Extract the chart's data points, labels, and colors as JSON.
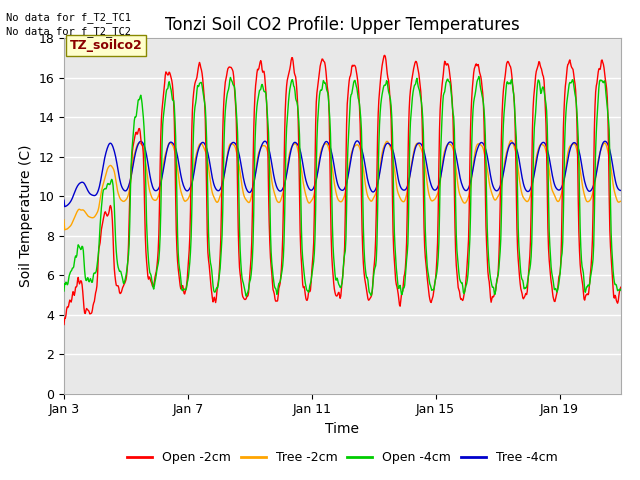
{
  "title": "Tonzi Soil CO2 Profile: Upper Temperatures",
  "xlabel": "Time",
  "ylabel": "Soil Temperature (C)",
  "no_data_text": [
    "No data for f_T2_TC1",
    "No data for f_T2_TC2"
  ],
  "dataset_label": "TZ_soilco2",
  "ylim": [
    0,
    18
  ],
  "yticks": [
    0,
    2,
    4,
    6,
    8,
    10,
    12,
    14,
    16,
    18
  ],
  "legend_entries": [
    "Open -2cm",
    "Tree -2cm",
    "Open -4cm",
    "Tree -4cm"
  ],
  "legend_colors": [
    "#ff0000",
    "#ffa500",
    "#00cc00",
    "#0000cc"
  ],
  "background_color": "#ffffff",
  "plot_bg_color": "#e8e8e8",
  "grid_color": "#ffffff",
  "title_fontsize": 12,
  "axis_fontsize": 10,
  "tick_fontsize": 9,
  "figsize": [
    6.4,
    4.8
  ],
  "dpi": 100
}
